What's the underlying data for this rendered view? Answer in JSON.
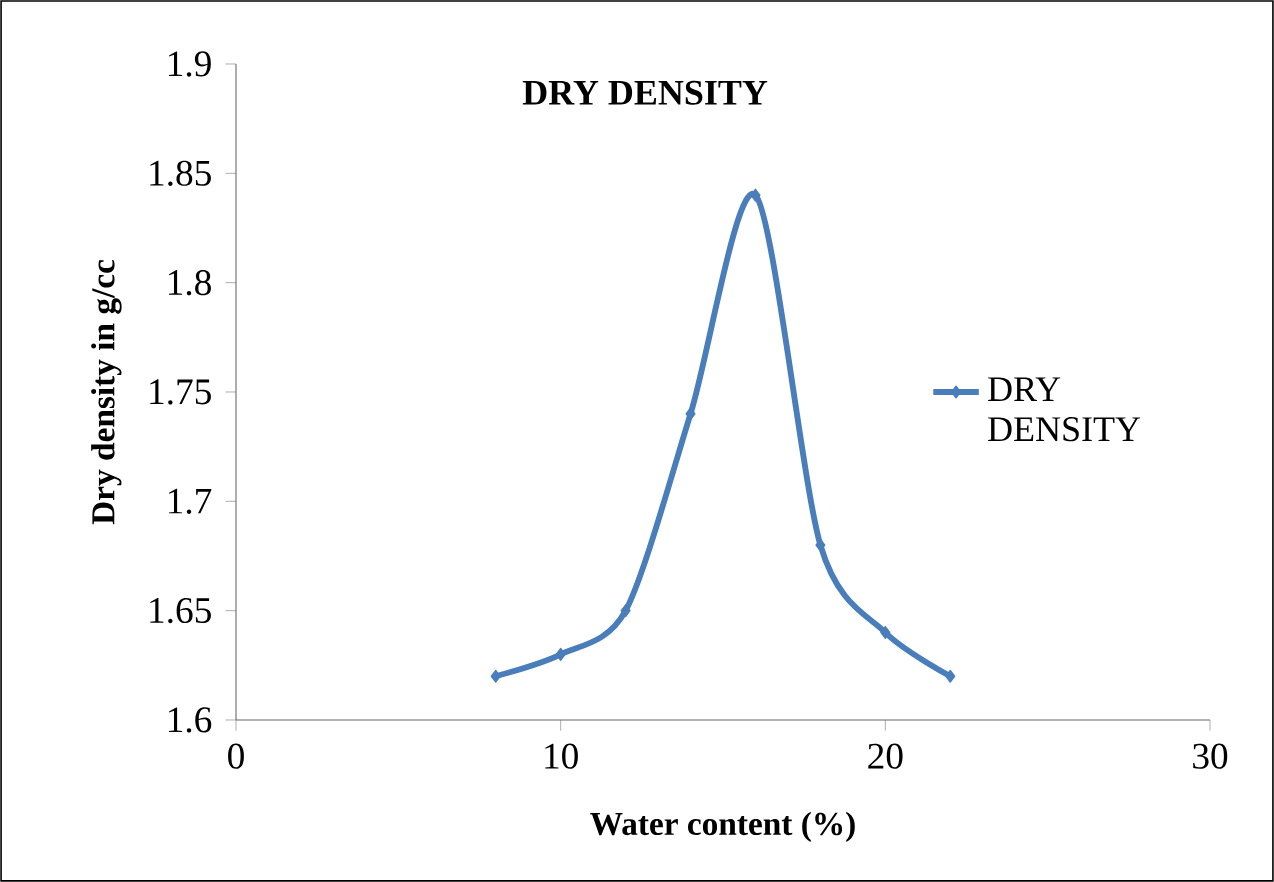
{
  "chart_data": {
    "type": "line",
    "title": "DRY DENSITY",
    "xlabel": "Water content (%)",
    "ylabel": "Dry density in   g/cc",
    "xlim": [
      0,
      30
    ],
    "xticks": [
      0,
      10,
      20,
      30
    ],
    "ylim": [
      1.6,
      1.9
    ],
    "yticks": [
      1.6,
      1.65,
      1.7,
      1.75,
      1.8,
      1.85,
      1.9
    ],
    "series": [
      {
        "name": "DRY DENSITY",
        "color": "#4a7ebb",
        "x": [
          8,
          10,
          12,
          14,
          16,
          18,
          20,
          22
        ],
        "values": [
          1.62,
          1.63,
          1.65,
          1.74,
          1.84,
          1.68,
          1.64,
          1.62
        ]
      }
    ],
    "marker": "diamond",
    "line_style": "solid",
    "legend": "right",
    "grid": false
  }
}
